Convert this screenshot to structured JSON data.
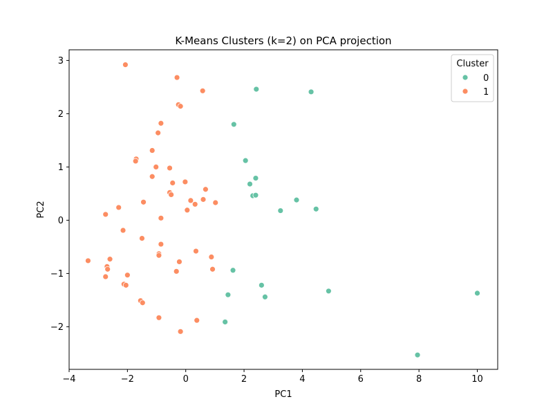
{
  "chart_data": {
    "type": "scatter",
    "title": "K-Means Clusters (k=2) on PCA projection",
    "xlabel": "PC1",
    "ylabel": "PC2",
    "xlim": [
      -4,
      10.7
    ],
    "ylim": [
      -2.8,
      3.2
    ],
    "xticks": [
      -4,
      -2,
      0,
      2,
      4,
      6,
      8,
      10
    ],
    "yticks": [
      -2,
      -1,
      0,
      1,
      2,
      3
    ],
    "grid": false,
    "legend": {
      "title": "Cluster",
      "placement": "top-right"
    },
    "series": [
      {
        "name": "0",
        "color": "#66c2a5",
        "points": [
          [
            2.42,
            2.46
          ],
          [
            4.3,
            2.41
          ],
          [
            1.65,
            1.8
          ],
          [
            2.05,
            1.12
          ],
          [
            2.4,
            0.79
          ],
          [
            2.2,
            0.68
          ],
          [
            2.3,
            0.46
          ],
          [
            2.4,
            0.47
          ],
          [
            3.25,
            0.18
          ],
          [
            3.8,
            0.38
          ],
          [
            4.47,
            0.21
          ],
          [
            1.62,
            -0.94
          ],
          [
            2.6,
            -1.22
          ],
          [
            4.9,
            -1.33
          ],
          [
            10.0,
            -1.37
          ],
          [
            1.45,
            -1.4
          ],
          [
            2.72,
            -1.44
          ],
          [
            1.35,
            -1.91
          ],
          [
            7.95,
            -2.53
          ]
        ]
      },
      {
        "name": "1",
        "color": "#fc8d62",
        "points": [
          [
            -2.07,
            2.92
          ],
          [
            -0.3,
            2.68
          ],
          [
            0.58,
            2.43
          ],
          [
            -0.25,
            2.17
          ],
          [
            -0.18,
            2.14
          ],
          [
            -0.85,
            1.82
          ],
          [
            -0.95,
            1.64
          ],
          [
            -1.15,
            1.31
          ],
          [
            -1.7,
            1.15
          ],
          [
            -1.72,
            1.11
          ],
          [
            -1.02,
            1.0
          ],
          [
            -0.55,
            0.98
          ],
          [
            -1.15,
            0.82
          ],
          [
            -0.45,
            0.7
          ],
          [
            -0.02,
            0.72
          ],
          [
            0.68,
            0.58
          ],
          [
            -0.55,
            0.52
          ],
          [
            -0.5,
            0.48
          ],
          [
            0.17,
            0.37
          ],
          [
            0.6,
            0.39
          ],
          [
            -1.45,
            0.34
          ],
          [
            0.32,
            0.3
          ],
          [
            1.02,
            0.33
          ],
          [
            -2.3,
            0.24
          ],
          [
            0.05,
            0.19
          ],
          [
            -2.75,
            0.11
          ],
          [
            -0.85,
            0.04
          ],
          [
            -2.15,
            -0.19
          ],
          [
            -1.5,
            -0.34
          ],
          [
            -0.85,
            -0.45
          ],
          [
            0.35,
            -0.58
          ],
          [
            -0.92,
            -0.63
          ],
          [
            -0.92,
            -0.66
          ],
          [
            0.88,
            -0.69
          ],
          [
            -2.6,
            -0.73
          ],
          [
            -3.35,
            -0.76
          ],
          [
            -0.22,
            -0.78
          ],
          [
            -2.7,
            -0.87
          ],
          [
            -2.68,
            -0.92
          ],
          [
            0.92,
            -0.92
          ],
          [
            -0.32,
            -0.96
          ],
          [
            -2.0,
            -1.03
          ],
          [
            -2.75,
            -1.06
          ],
          [
            -2.12,
            -1.2
          ],
          [
            -2.05,
            -1.22
          ],
          [
            -1.55,
            -1.51
          ],
          [
            -1.48,
            -1.55
          ],
          [
            -0.92,
            -1.83
          ],
          [
            0.38,
            -1.88
          ],
          [
            -0.18,
            -2.09
          ]
        ]
      }
    ]
  }
}
